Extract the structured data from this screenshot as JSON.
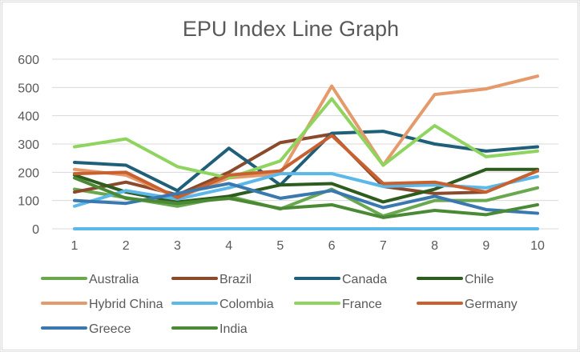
{
  "chart_data": {
    "type": "line",
    "title": "EPU Index Line Graph",
    "xlabel": "",
    "ylabel": "",
    "x": [
      1,
      2,
      3,
      4,
      5,
      6,
      7,
      8,
      9,
      10
    ],
    "x_ticks": [
      "1",
      "2",
      "3",
      "4",
      "5",
      "6",
      "7",
      "8",
      "9",
      "10"
    ],
    "y_ticks": [
      "0",
      "100",
      "200",
      "300",
      "400",
      "500",
      "600"
    ],
    "ylim": [
      0,
      600
    ],
    "grid": true,
    "legend_position": "bottom",
    "series": [
      {
        "name": "Australia",
        "color": "#6aa84f",
        "values": [
          140,
          110,
          80,
          115,
          70,
          140,
          45,
          100,
          100,
          145
        ]
      },
      {
        "name": "Brazil",
        "color": "#8b4a2b",
        "values": [
          130,
          165,
          120,
          200,
          305,
          335,
          150,
          125,
          130,
          205
        ]
      },
      {
        "name": "Canada",
        "color": "#1f5f7a",
        "values": [
          235,
          225,
          135,
          285,
          155,
          338,
          345,
          300,
          275,
          290
        ]
      },
      {
        "name": "Chile",
        "color": "#2e5c1e",
        "values": [
          190,
          130,
          95,
          115,
          155,
          160,
          95,
          140,
          210,
          210
        ]
      },
      {
        "name": "Hybrid China",
        "color": "#e49a6b",
        "values": [
          210,
          190,
          110,
          180,
          195,
          505,
          225,
          475,
          495,
          540
        ]
      },
      {
        "name": "Colombia",
        "color": "#5bb8e8",
        "values": [
          80,
          135,
          105,
          145,
          195,
          195,
          150,
          155,
          145,
          185
        ]
      },
      {
        "name": "France",
        "color": "#8fd45e",
        "values": [
          290,
          318,
          220,
          180,
          240,
          460,
          225,
          365,
          255,
          275
        ]
      },
      {
        "name": "Germany",
        "color": "#c8612f",
        "values": [
          195,
          200,
          110,
          190,
          205,
          330,
          160,
          165,
          130,
          205
        ]
      },
      {
        "name": "Greece",
        "color": "#3a78b0",
        "values": [
          100,
          90,
          125,
          160,
          108,
          135,
          75,
          115,
          68,
          55
        ]
      },
      {
        "name": "India",
        "color": "#4a8a35",
        "values": [
          180,
          108,
          90,
          108,
          72,
          85,
          40,
          65,
          50,
          85
        ]
      }
    ],
    "baseline_series": {
      "color": "#5bb8e8",
      "values": [
        0,
        0,
        0,
        0,
        0,
        0,
        0,
        0,
        0,
        0
      ]
    }
  }
}
